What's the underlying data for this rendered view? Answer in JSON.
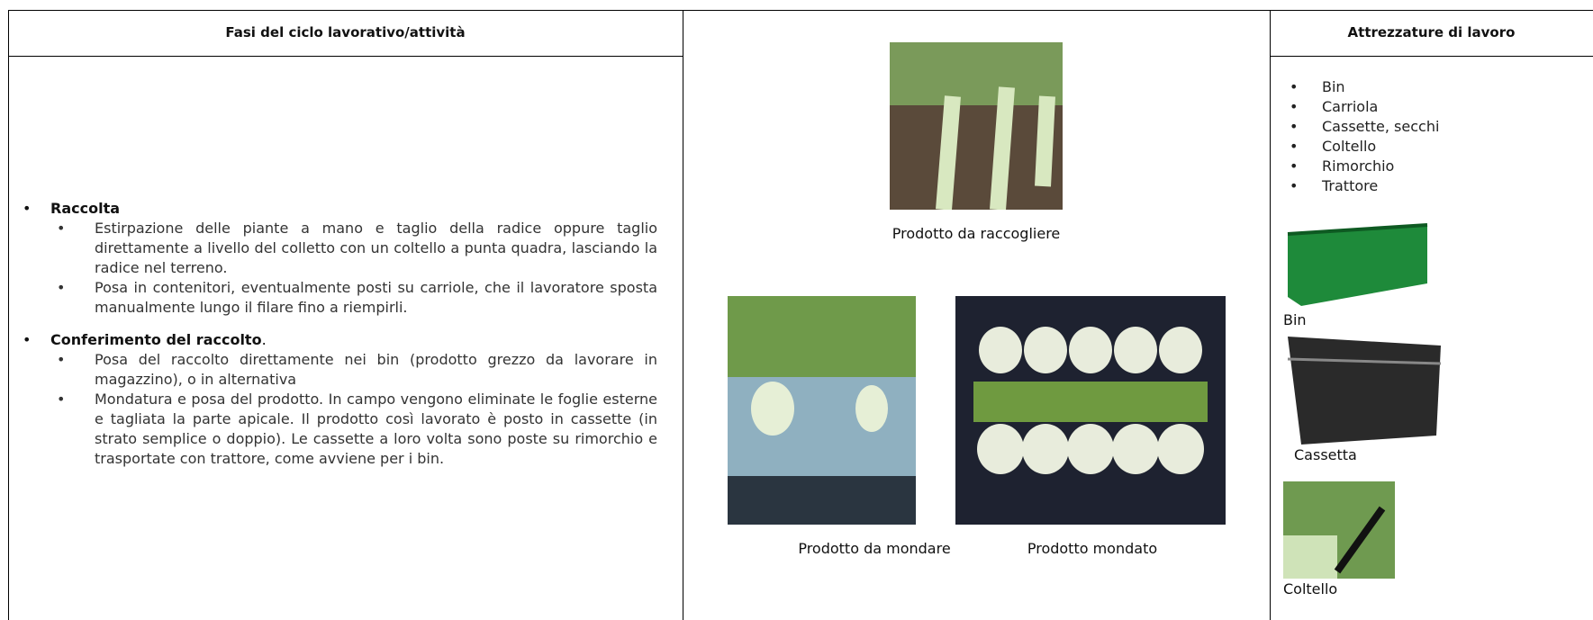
{
  "left": {
    "header": "Fasi del ciclo lavorativo/attività",
    "phases": [
      {
        "title": "Raccolta",
        "items": [
          "Estirpazione delle piante a mano e taglio della  radice  oppure taglio direttamente a livello del colletto con un coltello a punta quadra, lasciando la radice nel terreno.",
          "Posa in contenitori, eventualmente posti su carriole, che il lavoratore sposta manualmente lungo il filare fino a riempirli."
        ]
      },
      {
        "title": "Conferimento del raccolto",
        "title_suffix": ".",
        "items": [
          "Posa del raccolto direttamente nei bin (prodotto grezzo  da lavorare in magazzino), o in alternativa",
          "Mondatura e posa del prodotto. In campo vengono eliminate le foglie esterne e tagliata la parte apicale. Il prodotto così lavorato è posto in cassette (in strato semplice o doppio). Le cassette a loro volta sono poste su  rimorchio e trasportate con trattore, come avviene per i bin."
        ]
      }
    ]
  },
  "middle": {
    "captions": [
      "Prodotto da raccogliere",
      "Prodotto da mondare",
      "Prodotto mondato"
    ]
  },
  "right": {
    "header": "Attrezzature di lavoro",
    "items": [
      "Bin",
      "Carriola",
      "Cassette, secchi",
      "Coltello",
      "Rimorchio",
      "Trattore"
    ],
    "captions": [
      "Bin",
      "Cassetta",
      "Coltello"
    ]
  }
}
